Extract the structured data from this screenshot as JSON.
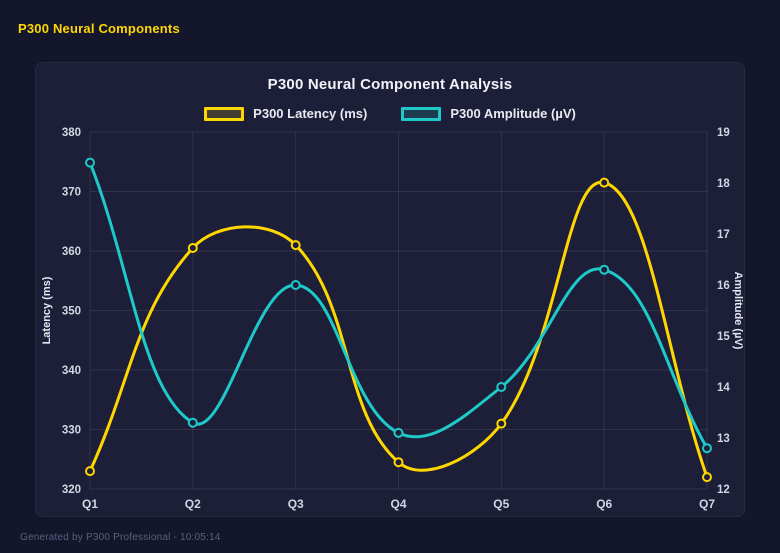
{
  "page": {
    "header_title": "P300 Neural Components",
    "footer_text": "Generated by P300 Professional - 10:05:14"
  },
  "colors": {
    "page_bg": "#14162b",
    "card_bg": "#1d1f38",
    "latency": "#ffd700",
    "amplitude": "#1ec9c9",
    "grid": "rgba(255,255,255,0.09)",
    "tick_label": "#d2d5e2",
    "axis_title": "#e4e6f0"
  },
  "chart_data": {
    "type": "line",
    "title": "P300 Neural Component Analysis",
    "categories": [
      "Q1",
      "Q2",
      "Q3",
      "Q4",
      "Q5",
      "Q6",
      "Q7"
    ],
    "series": [
      {
        "name": "P300 Latency (ms)",
        "axis": "left",
        "color": "#ffd700",
        "values": [
          323,
          360.5,
          361,
          324.5,
          331,
          371.5,
          322
        ]
      },
      {
        "name": "P300 Amplitude (µV)",
        "axis": "right",
        "color": "#1ec9c9",
        "values": [
          18.4,
          13.3,
          16.0,
          13.1,
          14.0,
          16.3,
          12.8
        ]
      }
    ],
    "y_left": {
      "label": "Latency (ms)",
      "min": 320,
      "max": 380,
      "ticks": [
        380,
        370,
        360,
        350,
        340,
        330,
        320
      ]
    },
    "y_right": {
      "label": "Amplitude (µV)",
      "min": 12,
      "max": 19,
      "ticks": [
        19,
        18,
        17,
        16,
        15,
        14,
        13,
        12
      ]
    },
    "legend_position": "top",
    "grid": true,
    "line_tension": 0.4
  }
}
